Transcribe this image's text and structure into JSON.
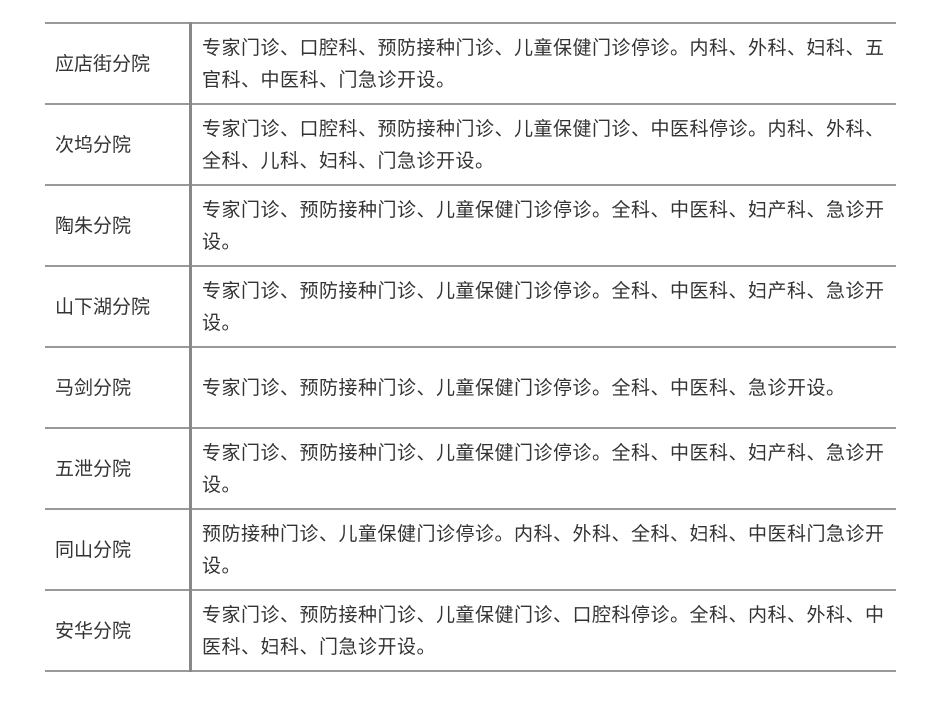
{
  "table": {
    "rows": [
      [
        "应店街分院",
        "专家门诊、口腔科、预防接种门诊、儿童保健门诊停诊。内科、外科、妇科、五官科、中医科、门急诊开设。"
      ],
      [
        "次坞分院",
        "专家门诊、口腔科、预防接种门诊、儿童保健门诊、中医科停诊。内科、外科、全科、儿科、妇科、门急诊开设。"
      ],
      [
        "陶朱分院",
        "专家门诊、预防接种门诊、儿童保健门诊停诊。全科、中医科、妇产科、急诊开设。"
      ],
      [
        "山下湖分院",
        "专家门诊、预防接种门诊、儿童保健门诊停诊。全科、中医科、妇产科、急诊开设。"
      ],
      [
        "马剑分院",
        "专家门诊、预防接种门诊、儿童保健门诊停诊。全科、中医科、急诊开设。"
      ],
      [
        "五泄分院",
        "专家门诊、预防接种门诊、儿童保健门诊停诊。全科、中医科、妇产科、急诊开设。"
      ],
      [
        "同山分院",
        "预防接种门诊、儿童保健门诊停诊。内科、外科、全科、妇科、中医科门急诊开设。"
      ],
      [
        "安华分院",
        "专家门诊、预防接种门诊、儿童保健门诊、口腔科停诊。全科、内科、外科、中医科、妇科、门急诊开设。"
      ]
    ]
  }
}
